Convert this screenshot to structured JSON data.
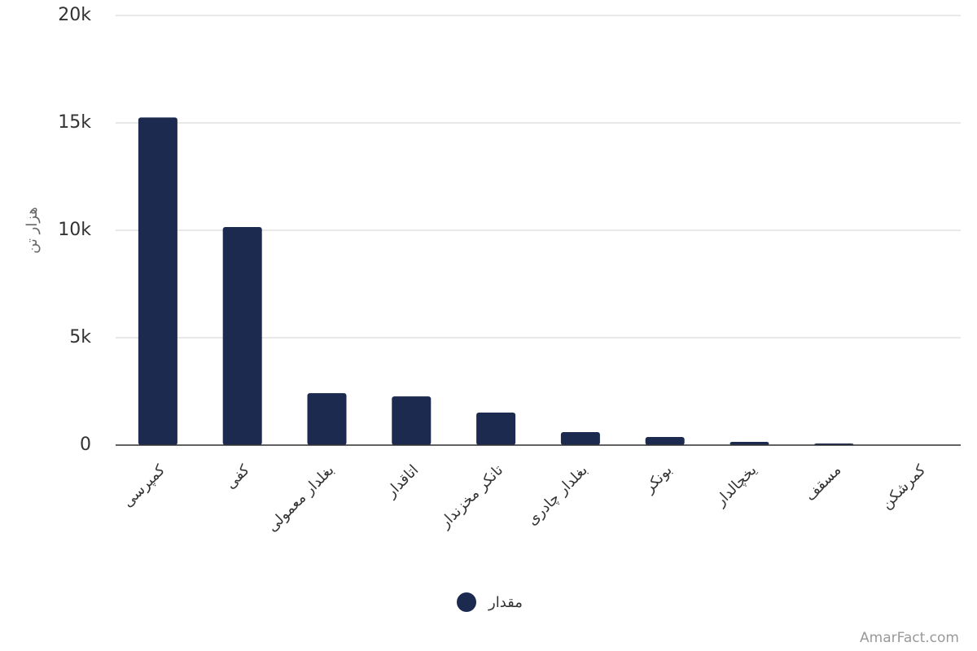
{
  "chart_data": {
    "type": "bar",
    "y_label": "هزار تن",
    "categories": [
      "کمپرسی",
      "کفی",
      "بغلدار معمولی",
      "اتاقدار",
      "تانکر مخزندار",
      "بغلدار چادری",
      "بونکر",
      "یخچالدار",
      "مسقف",
      "کمرشکن"
    ],
    "series": [
      {
        "name": "مقدار",
        "color": "#1b2a4e",
        "values": [
          15250,
          10150,
          2420,
          2270,
          1515,
          606,
          380,
          150,
          76,
          10
        ]
      }
    ],
    "ylim": [
      0,
      20000
    ],
    "yticks": [
      0,
      {
        "value": 5000,
        "label": "5k"
      },
      {
        "value": 10000,
        "label": "10k"
      },
      {
        "value": 15000,
        "label": "15k"
      },
      {
        "value": 20000,
        "label": "20k"
      }
    ],
    "grid": true,
    "watermark": "AmarFact.com"
  }
}
